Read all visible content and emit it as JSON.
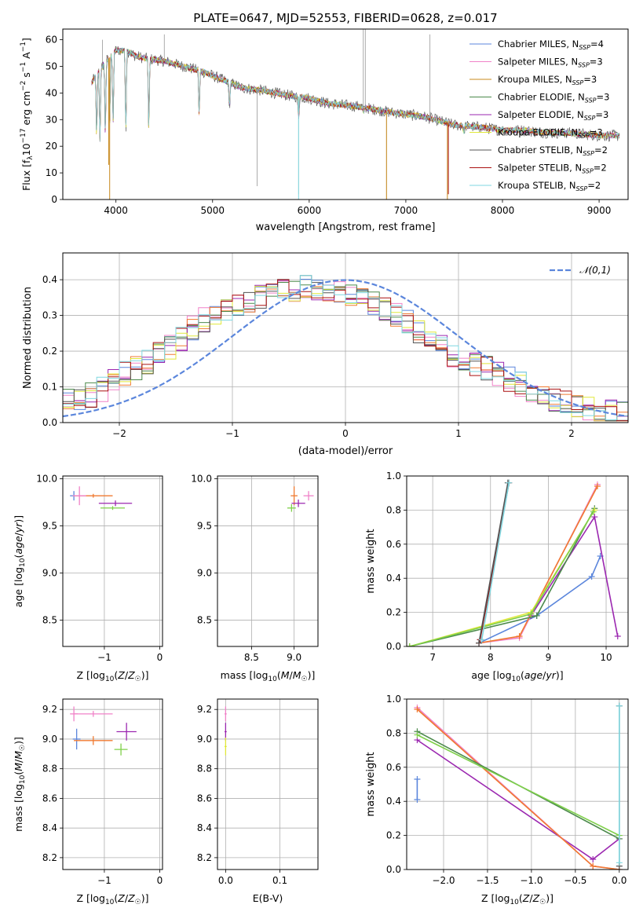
{
  "figure_title": "PLATE=0647, MJD=52553, FIBERID=0628, z=0.017",
  "model_colors": {
    "Chabrier MILES": "#5b86dc",
    "Salpeter MILES": "#f082c8",
    "Kroupa MILES": "#c88a1e",
    "Chabrier ELODIE": "#4c8a4c",
    "Salpeter ELODIE": "#9b27b0",
    "Kroupa ELODIE": "#e0e83a",
    "Chabrier STELIB": "#555555",
    "Salpeter STELIB": "#aa1111",
    "Kroupa STELIB": "#7fd7e0",
    "orange": "#f07a30",
    "green": "#7fd04a"
  },
  "chart_data": [
    {
      "id": "spectrum",
      "type": "line",
      "title": "PLATE=0647, MJD=52553, FIBERID=0628, z=0.017",
      "xlabel": "wavelength [Angstrom, rest frame]",
      "ylabel": "Flux [f_λ 10^-17 erg cm^-2 s^-1 A^-1]",
      "xlim": [
        3450,
        9300
      ],
      "ylim": [
        0,
        64
      ],
      "xticks": [
        "4000",
        "5000",
        "6000",
        "7000",
        "8000",
        "9000"
      ],
      "yticks": [
        "0",
        "10",
        "20",
        "30",
        "40",
        "50",
        "60"
      ],
      "legend": "top-right",
      "legend_entries": [
        {
          "label": "Chabrier MILES, N_SSP=4",
          "color": "#5b86dc"
        },
        {
          "label": "Salpeter MILES, N_SSP=3",
          "color": "#f082c8"
        },
        {
          "label": "Kroupa MILES, N_SSP=3",
          "color": "#c88a1e"
        },
        {
          "label": "Chabrier ELODIE, N_SSP=3",
          "color": "#4c8a4c"
        },
        {
          "label": "Salpeter ELODIE, N_SSP=3",
          "color": "#9b27b0"
        },
        {
          "label": "Kroupa ELODIE, N_SSP=3",
          "color": "#e0e83a"
        },
        {
          "label": "Chabrier STELIB, N_SSP=2",
          "color": "#555555"
        },
        {
          "label": "Salpeter STELIB, N_SSP=2",
          "color": "#aa1111"
        },
        {
          "label": "Kroupa STELIB, N_SSP=2",
          "color": "#7fd7e0"
        }
      ],
      "continuum": [
        [
          3750,
          44
        ],
        [
          3900,
          52
        ],
        [
          4000,
          56
        ],
        [
          4100,
          56
        ],
        [
          4200,
          54
        ],
        [
          4300,
          53
        ],
        [
          4500,
          52
        ],
        [
          4700,
          50
        ],
        [
          4900,
          48
        ],
        [
          5100,
          45
        ],
        [
          5300,
          42
        ],
        [
          5500,
          41
        ],
        [
          5800,
          39
        ],
        [
          6000,
          38
        ],
        [
          6200,
          36
        ],
        [
          6500,
          35
        ],
        [
          6800,
          33
        ],
        [
          7000,
          32
        ],
        [
          7200,
          31
        ],
        [
          7500,
          28
        ],
        [
          7800,
          27
        ],
        [
          8000,
          26
        ],
        [
          8200,
          26
        ],
        [
          8500,
          25
        ],
        [
          8700,
          25
        ],
        [
          9000,
          24
        ],
        [
          9200,
          24
        ]
      ],
      "absorption": [
        [
          3800,
          21
        ],
        [
          3835,
          20
        ],
        [
          3890,
          21
        ],
        [
          3935,
          28
        ],
        [
          3970,
          25
        ],
        [
          4102,
          22
        ],
        [
          4340,
          23
        ],
        [
          4861,
          31
        ],
        [
          5175,
          34
        ],
        [
          5890,
          30
        ],
        [
          6563,
          33
        ],
        [
          7600,
          25
        ]
      ],
      "spikes_gray": [
        [
          3860,
          60
        ],
        [
          4500,
          62
        ],
        [
          5460,
          5
        ],
        [
          5890,
          2
        ],
        [
          6560,
          64
        ],
        [
          6580,
          64
        ],
        [
          6800,
          0
        ],
        [
          7250,
          62
        ]
      ],
      "dropouts": [
        [
          3935,
          0,
          "#c88a1e"
        ],
        [
          3925,
          13,
          "#c88a1e"
        ],
        [
          5890,
          0,
          "#7fd7e0"
        ],
        [
          6800,
          0,
          "#c88a1e"
        ],
        [
          7430,
          0,
          "#c88a1e"
        ],
        [
          7440,
          2,
          "#aa1111"
        ]
      ]
    },
    {
      "id": "residuals",
      "type": "line",
      "xlabel": "(data-model)/error",
      "ylabel": "Normed distribution",
      "xlim": [
        -2.5,
        2.5
      ],
      "ylim": [
        0,
        0.475
      ],
      "xticks": [
        "−2",
        "−1",
        "0",
        "1",
        "2"
      ],
      "yticks": [
        "0.0",
        "0.1",
        "0.2",
        "0.3",
        "0.4"
      ],
      "legend": "top-right",
      "legend_label": "𝒩(0,1)",
      "gaussian": {
        "mean": 0,
        "sigma": 1,
        "color": "#5b86dc"
      },
      "histogram_mean_profile": [
        [
          -2.5,
          0.06
        ],
        [
          -2.2,
          0.08
        ],
        [
          -2.0,
          0.13
        ],
        [
          -1.8,
          0.16
        ],
        [
          -1.5,
          0.22
        ],
        [
          -1.3,
          0.28
        ],
        [
          -1.0,
          0.32
        ],
        [
          -0.8,
          0.35
        ],
        [
          -0.5,
          0.37
        ],
        [
          -0.3,
          0.38
        ],
        [
          0,
          0.36
        ],
        [
          0.2,
          0.34
        ],
        [
          0.4,
          0.31
        ],
        [
          0.6,
          0.27
        ],
        [
          0.8,
          0.22
        ],
        [
          1.0,
          0.18
        ],
        [
          1.2,
          0.16
        ],
        [
          1.4,
          0.13
        ],
        [
          1.6,
          0.1
        ],
        [
          1.8,
          0.07
        ],
        [
          2.0,
          0.05
        ],
        [
          2.2,
          0.04
        ],
        [
          2.5,
          0.02
        ]
      ]
    },
    {
      "id": "age_vs_Z",
      "type": "scatter",
      "xlabel": "Z [log10(Z/Z☉)]",
      "ylabel": "age [log10(age/yr)]",
      "xlim": [
        -1.75,
        0.05
      ],
      "ylim": [
        8.22,
        10.03
      ],
      "xticks": [
        "−1",
        "0"
      ],
      "yticks": [
        "8.5",
        "9.0",
        "9.5",
        "10.0"
      ],
      "points": [
        {
          "x": -1.55,
          "y": 9.82,
          "xerr": 0.07,
          "yerr": 0.05,
          "color": "#5b86dc"
        },
        {
          "x": -1.2,
          "y": 9.82,
          "xerr": 0.35,
          "yerr": 0.02,
          "color": "#f07a30"
        },
        {
          "x": -1.45,
          "y": 9.82,
          "xerr": 0.12,
          "yerr": 0.1,
          "color": "#f082c8"
        },
        {
          "x": -0.8,
          "y": 9.74,
          "xerr": 0.3,
          "yerr": 0.03,
          "color": "#9b27b0"
        },
        {
          "x": -0.85,
          "y": 9.69,
          "xerr": 0.22,
          "yerr": 0.02,
          "color": "#7fd04a"
        }
      ]
    },
    {
      "id": "age_vs_mass",
      "type": "scatter",
      "xlabel": "mass [log10(M/M☉)]",
      "ylabel": "",
      "xlim": [
        8.1,
        9.28
      ],
      "ylim": [
        8.22,
        10.03
      ],
      "xticks": [
        "8.5",
        "9.0"
      ],
      "yticks": [
        "8.5",
        "9.0",
        "9.5",
        "10.0"
      ],
      "points": [
        {
          "x": 9.0,
          "y": 9.82,
          "xerr": 0.04,
          "yerr": 0.1,
          "color": "#f07a30"
        },
        {
          "x": 9.17,
          "y": 9.82,
          "xerr": 0.06,
          "yerr": 0.05,
          "color": "#f082c8"
        },
        {
          "x": 9.05,
          "y": 9.74,
          "xerr": 0.08,
          "yerr": 0.04,
          "color": "#9b27b0"
        },
        {
          "x": 8.97,
          "y": 9.69,
          "xerr": 0.05,
          "yerr": 0.04,
          "color": "#7fd04a"
        }
      ]
    },
    {
      "id": "massweight_vs_age",
      "type": "line",
      "xlabel": "age [log10(age/yr)]",
      "ylabel": "mass weight",
      "xlim": [
        6.55,
        10.38
      ],
      "ylim": [
        0,
        1.0
      ],
      "xticks": [
        "7",
        "8",
        "9",
        "10"
      ],
      "yticks": [
        "0.0",
        "0.2",
        "0.4",
        "0.6",
        "0.8",
        "1.0"
      ],
      "series": [
        {
          "color": "#5b86dc",
          "x": [
            7.8,
            8.8,
            9.75,
            9.9
          ],
          "y": [
            0.02,
            0.18,
            0.41,
            0.53
          ]
        },
        {
          "color": "#9b27b0",
          "x": [
            8.7,
            9.8,
            10.2
          ],
          "y": [
            0.18,
            0.76,
            0.06
          ]
        },
        {
          "color": "#f082c8",
          "x": [
            7.8,
            8.5,
            9.85
          ],
          "y": [
            0.02,
            0.05,
            0.95
          ]
        },
        {
          "color": "#f07a30",
          "x": [
            7.8,
            8.5,
            9.85
          ],
          "y": [
            0.02,
            0.06,
            0.94
          ]
        },
        {
          "color": "#4c8a4c",
          "x": [
            6.6,
            8.8,
            9.8
          ],
          "y": [
            0.0,
            0.18,
            0.81
          ]
        },
        {
          "color": "#e0e83a",
          "x": [
            6.6,
            8.7,
            9.8
          ],
          "y": [
            0.0,
            0.2,
            0.8
          ]
        },
        {
          "color": "#7fd04a",
          "x": [
            6.6,
            8.7,
            9.78
          ],
          "y": [
            0.0,
            0.19,
            0.79
          ]
        },
        {
          "color": "#aa1111",
          "x": [
            7.82,
            8.32
          ],
          "y": [
            0.04,
            0.96
          ]
        },
        {
          "color": "#555555",
          "x": [
            7.8,
            8.3
          ],
          "y": [
            0.02,
            0.96
          ]
        },
        {
          "color": "#7fd7e0",
          "x": [
            7.85,
            8.32
          ],
          "y": [
            0.04,
            0.96
          ]
        }
      ]
    },
    {
      "id": "mass_vs_Z",
      "type": "scatter",
      "xlabel": "Z [log10(Z/Z☉)]",
      "ylabel": "mass [log10(M/M☉)]",
      "xlim": [
        -1.75,
        0.05
      ],
      "ylim": [
        8.12,
        9.27
      ],
      "xticks": [
        "−1",
        "0"
      ],
      "yticks": [
        "8.2",
        "8.4",
        "8.6",
        "8.8",
        "9.0",
        "9.2"
      ],
      "points": [
        {
          "x": -1.55,
          "y": 9.17,
          "xerr": 0.07,
          "yerr": 0.05,
          "color": "#f082c8"
        },
        {
          "x": -1.2,
          "y": 9.17,
          "xerr": 0.35,
          "yerr": 0.02,
          "color": "#f082c8"
        },
        {
          "x": -1.5,
          "y": 9.0,
          "xerr": 0.07,
          "yerr": 0.07,
          "color": "#5b86dc"
        },
        {
          "x": -1.2,
          "y": 8.99,
          "xerr": 0.35,
          "yerr": 0.03,
          "color": "#f07a30"
        },
        {
          "x": -0.6,
          "y": 9.05,
          "xerr": 0.18,
          "yerr": 0.06,
          "color": "#9b27b0"
        },
        {
          "x": -0.7,
          "y": 8.93,
          "xerr": 0.12,
          "yerr": 0.04,
          "color": "#7fd04a"
        }
      ]
    },
    {
      "id": "mass_vs_EBV",
      "type": "scatter",
      "xlabel": "E(B-V)",
      "ylabel": "",
      "xlim": [
        -0.015,
        0.17
      ],
      "ylim": [
        8.12,
        9.27
      ],
      "xticks": [
        "0.0",
        "0.1"
      ],
      "yticks": [
        "8.2",
        "8.4",
        "8.6",
        "8.8",
        "9.0",
        "9.2"
      ],
      "points": [
        {
          "x": 0.0,
          "y": 9.17,
          "xerr": 0.002,
          "yerr": 0.05,
          "color": "#f082c8"
        },
        {
          "x": 0.0,
          "y": 9.05,
          "xerr": 0.002,
          "yerr": 0.06,
          "color": "#9b27b0"
        },
        {
          "x": 0.0,
          "y": 8.95,
          "xerr": 0.002,
          "yerr": 0.06,
          "color": "#e0e83a"
        }
      ]
    },
    {
      "id": "massweight_vs_Z",
      "type": "line",
      "xlabel": "Z [log10(Z/Z☉)]",
      "ylabel": "mass weight",
      "xlim": [
        -2.42,
        0.1
      ],
      "ylim": [
        0,
        1.0
      ],
      "xticks": [
        "−2.0",
        "−1.5",
        "−1.0",
        "−0.5",
        "0.0"
      ],
      "yticks": [
        "0.0",
        "0.2",
        "0.4",
        "0.6",
        "0.8",
        "1.0"
      ],
      "series": [
        {
          "color": "#5b86dc",
          "x": [
            -2.3,
            -2.3
          ],
          "y": [
            0.41,
            0.53
          ]
        },
        {
          "color": "#9b27b0",
          "x": [
            -2.3,
            -0.3,
            0.0
          ],
          "y": [
            0.76,
            0.06,
            0.18
          ]
        },
        {
          "color": "#f082c8",
          "x": [
            -2.3,
            -0.3,
            0.0
          ],
          "y": [
            0.95,
            0.02,
            0.0
          ]
        },
        {
          "color": "#f07a30",
          "x": [
            -2.3,
            -0.3,
            0.0
          ],
          "y": [
            0.94,
            0.02,
            0.0
          ]
        },
        {
          "color": "#4c8a4c",
          "x": [
            -2.3,
            0.0
          ],
          "y": [
            0.81,
            0.18
          ]
        },
        {
          "color": "#7fd04a",
          "x": [
            -2.3,
            0.0
          ],
          "y": [
            0.79,
            0.2
          ]
        },
        {
          "color": "#555555",
          "x": [
            0.0,
            0.0
          ],
          "y": [
            0.02,
            0.96
          ]
        },
        {
          "color": "#7fd7e0",
          "x": [
            0.0,
            0.0
          ],
          "y": [
            0.04,
            0.96
          ]
        }
      ]
    }
  ]
}
